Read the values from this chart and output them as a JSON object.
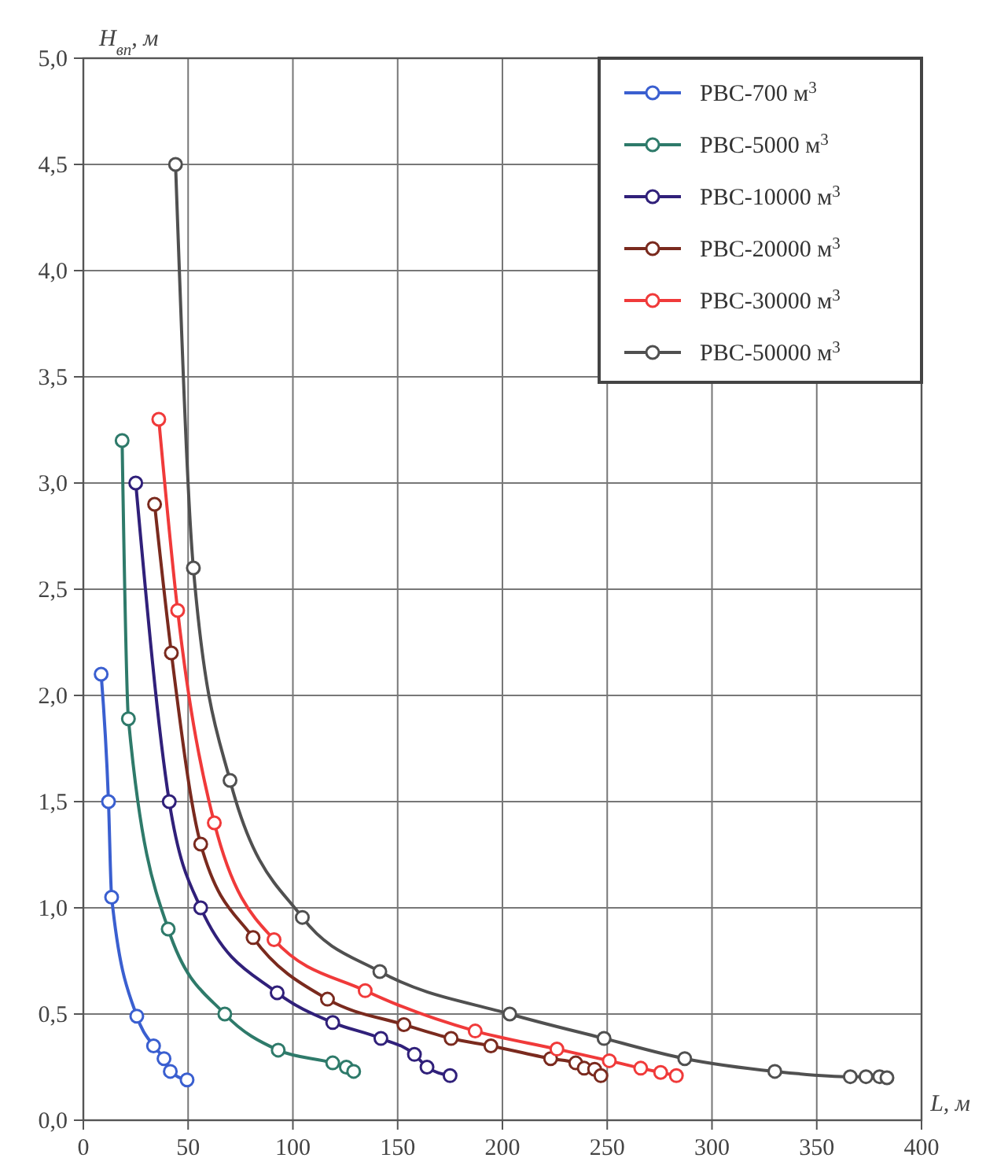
{
  "chart_data": {
    "type": "line",
    "xlabel": "L, м",
    "ylabel": "H$_{вп}$, м",
    "xlim": [
      0,
      400
    ],
    "xticks": [
      0,
      50,
      100,
      150,
      200,
      250,
      300,
      350,
      400
    ],
    "ylim": [
      0,
      5
    ],
    "yticks": [
      {
        "value": 0,
        "label": "0,0"
      },
      {
        "value": 0.5,
        "label": "0,5"
      },
      {
        "value": 1,
        "label": "1,0"
      },
      {
        "value": 1.5,
        "label": "1,5"
      },
      {
        "value": 2,
        "label": "2,0"
      },
      {
        "value": 2.5,
        "label": "2,5"
      },
      {
        "value": 3,
        "label": "3,0"
      },
      {
        "value": 3.5,
        "label": "3,5"
      },
      {
        "value": 4,
        "label": "4,0"
      },
      {
        "value": 4.5,
        "label": "4,5"
      },
      {
        "value": 5,
        "label": "5,0"
      }
    ],
    "grid": true,
    "legend": "top right",
    "marker": "circle",
    "line_style": "solid",
    "series": [
      {
        "name": "РВС-700 м$^{3}$",
        "color": "#3a5fd0",
        "x": [
          8.5,
          12,
          13.5,
          25.5,
          33.5,
          38.5,
          41.5,
          49.5
        ],
        "values": [
          2.1,
          1.5,
          1.05,
          0.49,
          0.35,
          0.29,
          0.23,
          0.19
        ]
      },
      {
        "name": "РВС-5000 м$^{3}$",
        "color": "#2e7a6a",
        "x": [
          18.5,
          21.5,
          40.5,
          67.5,
          93,
          119,
          125.5,
          129
        ],
        "values": [
          3.2,
          1.89,
          0.9,
          0.5,
          0.33,
          0.27,
          0.25,
          0.23
        ]
      },
      {
        "name": "РВС-10000 м$^{3}$",
        "color": "#30207a",
        "x": [
          25,
          41,
          56,
          92.5,
          119,
          142,
          158,
          164,
          175
        ],
        "values": [
          3.0,
          1.5,
          1.0,
          0.6,
          0.46,
          0.385,
          0.31,
          0.25,
          0.21
        ]
      },
      {
        "name": "РВС-20000 м$^{3}$",
        "color": "#7a2a1e",
        "x": [
          34,
          42,
          56,
          81,
          116.5,
          153,
          175.5,
          194.5,
          223,
          235,
          239,
          244,
          247
        ],
        "values": [
          2.9,
          2.2,
          1.3,
          0.86,
          0.57,
          0.45,
          0.385,
          0.35,
          0.29,
          0.27,
          0.245,
          0.24,
          0.21
        ]
      },
      {
        "name": "РВС-30000 м$^{3}$",
        "color": "#f03a3a",
        "x": [
          36,
          45,
          62.5,
          91,
          134.5,
          187,
          226,
          251,
          266,
          275.5,
          283
        ],
        "values": [
          3.3,
          2.4,
          1.4,
          0.85,
          0.61,
          0.42,
          0.335,
          0.28,
          0.245,
          0.225,
          0.21
        ]
      },
      {
        "name": "РВС-50000 м$^{3}$",
        "color": "#505050",
        "x": [
          44,
          52.5,
          70,
          104.5,
          141.5,
          203.5,
          248.5,
          287,
          330,
          366,
          373.5,
          380,
          383.5
        ],
        "values": [
          4.5,
          2.6,
          1.6,
          0.955,
          0.7,
          0.5,
          0.385,
          0.29,
          0.23,
          0.205,
          0.205,
          0.205,
          0.2
        ]
      }
    ]
  }
}
